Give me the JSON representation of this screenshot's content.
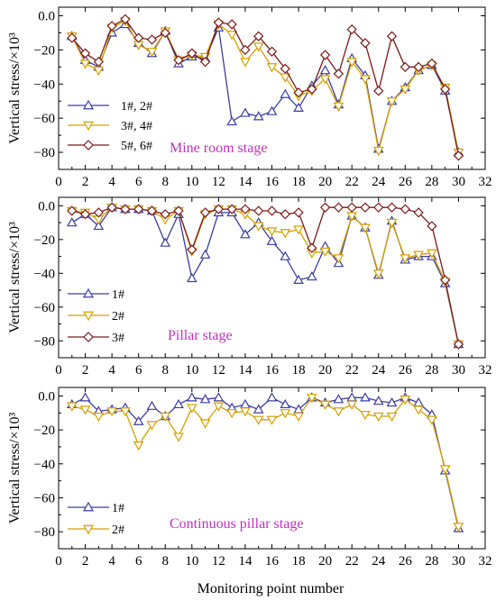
{
  "figure": {
    "xlabel": "Monitoring point number",
    "colors": {
      "blue": "#3c3ca0",
      "orange": "#d4a000",
      "darkred": "#7a1a1a",
      "stage_label": "#c030c0",
      "axis": "#000000"
    }
  },
  "chart_data": [
    {
      "type": "line",
      "panel_label": "Mine room stage",
      "xlabel": "",
      "ylabel": "Vertical stress/×10³",
      "xlim": [
        0,
        32
      ],
      "ylim": [
        -90,
        5
      ],
      "xticks": [
        0,
        2,
        4,
        6,
        8,
        10,
        12,
        14,
        16,
        18,
        20,
        22,
        24,
        26,
        28,
        30,
        32
      ],
      "yticks": [
        0,
        -20,
        -40,
        -60,
        -80
      ],
      "ytick_labels": [
        "0.0",
        "−20",
        "−40",
        "−60",
        "−80"
      ],
      "legend_position": "bottom-left",
      "x": [
        1,
        2,
        3,
        4,
        5,
        6,
        7,
        8,
        9,
        10,
        11,
        12,
        13,
        14,
        15,
        16,
        17,
        18,
        19,
        20,
        21,
        22,
        23,
        24,
        25,
        26,
        27,
        28,
        29,
        30
      ],
      "series": [
        {
          "name": "1#, 2#",
          "color": "#3c3ca0",
          "marker": "triangle-up",
          "values": [
            -12,
            -26,
            -30,
            -10,
            -5,
            -16,
            -22,
            -9,
            -28,
            -24,
            -25,
            -7,
            -62,
            -57,
            -59,
            -56,
            -46,
            -54,
            -41,
            -32,
            -52,
            -25,
            -35,
            -78,
            -50,
            -42,
            -32,
            -29,
            -44,
            -80
          ]
        },
        {
          "name": "3#, 4#",
          "color": "#d4a000",
          "marker": "triangle-down",
          "values": [
            -12,
            -28,
            -32,
            -7,
            -3,
            -17,
            -21,
            -9,
            -26,
            -23,
            -24,
            -5,
            -11,
            -27,
            -18,
            -30,
            -36,
            -47,
            -44,
            -37,
            -53,
            -27,
            -37,
            -79,
            -50,
            -43,
            -32,
            -29,
            -42,
            -80
          ]
        },
        {
          "name": "5#, 6#",
          "color": "#7a1a1a",
          "marker": "diamond",
          "values": [
            -13,
            -22,
            -27,
            -6,
            -2,
            -13,
            -14,
            -10,
            -26,
            -22,
            -27,
            -4,
            -5,
            -20,
            -12,
            -21,
            -31,
            -45,
            -43,
            -23,
            -34,
            -8,
            -16,
            -44,
            -12,
            -30,
            -30,
            -28,
            -43,
            -82
          ]
        }
      ]
    },
    {
      "type": "line",
      "panel_label": "Pillar stage",
      "xlabel": "",
      "ylabel": "Vertical stress/×10³",
      "xlim": [
        0,
        32
      ],
      "ylim": [
        -90,
        5
      ],
      "xticks": [
        0,
        2,
        4,
        6,
        8,
        10,
        12,
        14,
        16,
        18,
        20,
        22,
        24,
        26,
        28,
        30,
        32
      ],
      "yticks": [
        0,
        -20,
        -40,
        -60,
        -80
      ],
      "ytick_labels": [
        "0.0",
        "−20",
        "−40",
        "−60",
        "−80"
      ],
      "legend_position": "bottom-left",
      "x": [
        1,
        2,
        3,
        4,
        5,
        6,
        7,
        8,
        9,
        10,
        11,
        12,
        13,
        14,
        15,
        16,
        17,
        18,
        19,
        20,
        21,
        22,
        23,
        24,
        25,
        26,
        27,
        28,
        29,
        30
      ],
      "series": [
        {
          "name": "1#",
          "color": "#3c3ca0",
          "marker": "triangle-up",
          "values": [
            -10,
            -5,
            -12,
            -1,
            -2,
            -2,
            -3,
            -22,
            -5,
            -43,
            -29,
            -4,
            -4,
            -17,
            -10,
            -21,
            -30,
            -44,
            -42,
            -24,
            -34,
            -6,
            -13,
            -41,
            -9,
            -32,
            -30,
            -30,
            -46,
            -82
          ]
        },
        {
          "name": "2#",
          "color": "#d4a000",
          "marker": "triangle-down",
          "values": [
            -3,
            -4,
            -8,
            -1,
            -2,
            -2,
            -3,
            -8,
            -3,
            -27,
            -5,
            -2,
            -2,
            -5,
            -12,
            -15,
            -16,
            -14,
            -28,
            -27,
            -31,
            -6,
            -13,
            -40,
            -10,
            -31,
            -29,
            -28,
            -45,
            -82
          ]
        },
        {
          "name": "3#",
          "color": "#7a1a1a",
          "marker": "diamond",
          "values": [
            -3,
            -5,
            -4,
            -1,
            -2,
            -2,
            -3,
            -5,
            -3,
            -26,
            -4,
            -2,
            -2,
            -2,
            -3,
            -3,
            -5,
            -4,
            -25,
            -1,
            -1,
            -1,
            -1,
            -1,
            -1,
            -2,
            -4,
            -12,
            -44,
            -82
          ]
        }
      ]
    },
    {
      "type": "line",
      "panel_label": "Continuous pillar stage",
      "xlabel": "Monitoring point number",
      "ylabel": "Vertical stress/×10³",
      "xlim": [
        0,
        32
      ],
      "ylim": [
        -90,
        5
      ],
      "xticks": [
        0,
        2,
        4,
        6,
        8,
        10,
        12,
        14,
        16,
        18,
        20,
        22,
        24,
        26,
        28,
        30,
        32
      ],
      "yticks": [
        0,
        -20,
        -40,
        -60,
        -80
      ],
      "ytick_labels": [
        "0.0",
        "−20",
        "−40",
        "−60",
        "−80"
      ],
      "legend_position": "bottom-left",
      "x": [
        1,
        2,
        3,
        4,
        5,
        6,
        7,
        8,
        9,
        10,
        11,
        12,
        13,
        14,
        15,
        16,
        17,
        18,
        19,
        20,
        21,
        22,
        23,
        24,
        25,
        26,
        27,
        28,
        29,
        30
      ],
      "series": [
        {
          "name": "1#",
          "color": "#3c3ca0",
          "marker": "triangle-up",
          "values": [
            -5,
            -1,
            -9,
            -8,
            -7,
            -15,
            -6,
            -12,
            -5,
            -1,
            -2,
            -1,
            -7,
            -5,
            -8,
            -1,
            -5,
            -8,
            -1,
            -4,
            -2,
            -1,
            -1,
            -3,
            -4,
            -1,
            -4,
            -11,
            -44,
            -78
          ]
        },
        {
          "name": "2#",
          "color": "#d4a000",
          "marker": "triangle-down",
          "values": [
            -6,
            -8,
            -12,
            -9,
            -9,
            -29,
            -17,
            -12,
            -24,
            -7,
            -16,
            -6,
            -10,
            -9,
            -14,
            -14,
            -10,
            -12,
            -1,
            -5,
            -9,
            -5,
            -11,
            -12,
            -12,
            -2,
            -8,
            -14,
            -43,
            -77
          ]
        }
      ]
    }
  ]
}
